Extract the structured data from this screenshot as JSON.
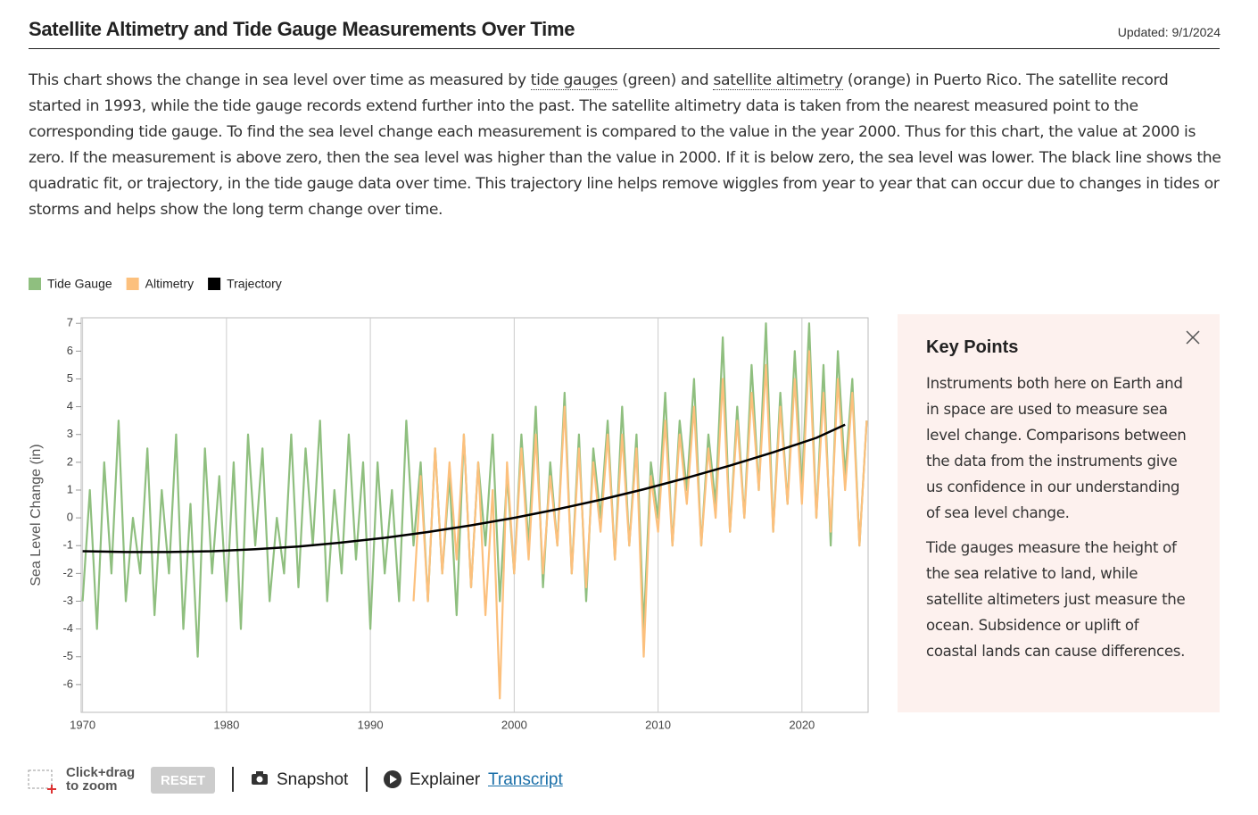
{
  "header": {
    "title": "Satellite Altimetry and Tide Gauge Measurements Over Time",
    "updated": "Updated: 9/1/2024"
  },
  "description": [
    "This chart shows the change in sea level over time as measured by ",
    "tide gauges",
    " (green) and ",
    "satellite altimetry",
    " (orange) in Puerto Rico. The satellite record started in 1993, while the tide gauge records extend further into the past. The satellite altimetry data is taken from the nearest measured point to the corresponding tide gauge. To find the sea level change each measurement is compared to the value in the year 2000. Thus for this chart, the value at 2000 is zero. If the measurement is above zero, then the sea level was higher than the value in 2000. If it is below zero, the sea level was lower. The black line shows the quadratic fit, or trajectory, in the tide gauge data over time. This trajectory line helps remove wiggles from year to year that can occur due to changes in tides or storms and helps show the long term change over time."
  ],
  "chart_data": {
    "type": "line",
    "ylabel": "Sea Level Change (in)",
    "xlim": [
      1969.9,
      2024.6
    ],
    "xticks": [
      1970,
      1980,
      1990,
      2000,
      2010,
      2020
    ],
    "ylim": [
      -7,
      7.2
    ],
    "yticks": [
      -6,
      -5,
      -4,
      -3,
      -2,
      -1,
      0,
      1,
      2,
      3,
      4,
      5,
      6,
      7
    ],
    "grid": "x",
    "legend": "top-left",
    "series": [
      {
        "name": "Tide Gauge",
        "color": "#8fbf7f",
        "x": [
          1970,
          1970.5,
          1971,
          1971.5,
          1972,
          1972.5,
          1973,
          1973.5,
          1974,
          1974.5,
          1975,
          1975.5,
          1976,
          1976.5,
          1977,
          1977.5,
          1978,
          1978.5,
          1979,
          1979.5,
          1980,
          1980.5,
          1981,
          1981.5,
          1982,
          1982.5,
          1983,
          1983.5,
          1984,
          1984.5,
          1985,
          1985.5,
          1986,
          1986.5,
          1987,
          1987.5,
          1988,
          1988.5,
          1989,
          1989.5,
          1990,
          1990.5,
          1991,
          1991.5,
          1992,
          1992.5,
          1993,
          1993.5,
          1994,
          1994.5,
          1995,
          1995.5,
          1996,
          1996.5,
          1997,
          1997.5,
          1998,
          1998.5,
          1999,
          1999.5,
          2000,
          2000.5,
          2001,
          2001.5,
          2002,
          2002.5,
          2003,
          2003.5,
          2004,
          2004.5,
          2005,
          2005.5,
          2006,
          2006.5,
          2007,
          2007.5,
          2008,
          2008.5,
          2009,
          2009.5,
          2010,
          2010.5,
          2011,
          2011.5,
          2012,
          2012.5,
          2013,
          2013.5,
          2014,
          2014.5,
          2015,
          2015.5,
          2016,
          2016.5,
          2017,
          2017.5,
          2018,
          2018.5,
          2019,
          2019.5,
          2020,
          2020.5,
          2021,
          2021.5,
          2022,
          2022.5,
          2023,
          2023.5,
          2024,
          2024.5
        ],
        "values": [
          -3,
          1,
          -4,
          2,
          -2,
          3.5,
          -3,
          0,
          -2,
          2.5,
          -3.5,
          1,
          -2,
          3,
          -4,
          0.5,
          -5,
          2.5,
          -2,
          1.5,
          -3,
          2,
          -4,
          3,
          -1,
          2.5,
          -3,
          0,
          -2,
          3,
          -2.5,
          2.5,
          -1,
          3.5,
          -3,
          1,
          -2,
          3,
          -1.5,
          2,
          -4,
          2,
          -2,
          1,
          -3,
          3.5,
          -1,
          2,
          -3,
          2.5,
          -2,
          1.5,
          -3.5,
          3,
          -2.5,
          2,
          -1,
          3,
          -3,
          1.5,
          -2,
          3,
          -1,
          4,
          -2.5,
          2,
          -1,
          4.5,
          -2,
          3,
          -3,
          2.5,
          0,
          3.5,
          -1.5,
          4,
          -1,
          3,
          -4,
          2,
          0,
          4.5,
          -1,
          3.5,
          1,
          5,
          -1,
          3,
          0.5,
          6.5,
          -0.5,
          4,
          0,
          5.5,
          1,
          7,
          -0.5,
          4.5,
          0.5,
          6,
          1,
          7,
          0,
          5.5,
          -1,
          6,
          1.5,
          5,
          -1,
          3.5
        ]
      },
      {
        "name": "Altimetry",
        "color": "#fcc07d",
        "x": [
          1993,
          1993.5,
          1994,
          1994.5,
          1995,
          1995.5,
          1996,
          1996.5,
          1997,
          1997.5,
          1998,
          1998.5,
          1999,
          1999.5,
          2000,
          2000.5,
          2001,
          2001.5,
          2002,
          2002.5,
          2003,
          2003.5,
          2004,
          2004.5,
          2005,
          2005.5,
          2006,
          2006.5,
          2007,
          2007.5,
          2008,
          2008.5,
          2009,
          2009.5,
          2010,
          2010.5,
          2011,
          2011.5,
          2012,
          2012.5,
          2013,
          2013.5,
          2014,
          2014.5,
          2015,
          2015.5,
          2016,
          2016.5,
          2017,
          2017.5,
          2018,
          2018.5,
          2019,
          2019.5,
          2020,
          2020.5,
          2021,
          2021.5,
          2022,
          2022.5,
          2023,
          2023.5,
          2024,
          2024.5
        ],
        "values": [
          -3,
          1.5,
          -3,
          2.5,
          -2,
          2,
          -1.5,
          3,
          -2.5,
          2,
          -3.5,
          1,
          -6.5,
          2,
          -2,
          2.5,
          -1.5,
          3,
          -2,
          1.5,
          -1,
          4,
          -2,
          2.5,
          -2.5,
          2,
          -0.5,
          3,
          -1.5,
          3,
          -1,
          2.5,
          -5,
          1.5,
          -0.5,
          3.5,
          -1,
          3,
          0.5,
          4,
          -1,
          2.5,
          0,
          5,
          -0.5,
          3.5,
          0,
          4.5,
          1,
          5.5,
          -0.5,
          4,
          0.5,
          5,
          0.5,
          6,
          0,
          4.5,
          -0.5,
          5,
          1,
          4.5,
          -1,
          3.5
        ]
      },
      {
        "name": "Trajectory",
        "color": "#000000",
        "x": [
          1970,
          1973,
          1976,
          1979,
          1982,
          1985,
          1988,
          1991,
          1994,
          1997,
          2000,
          2003,
          2006,
          2009,
          2012,
          2015,
          2018,
          2021,
          2023
        ],
        "values": [
          -1.2,
          -1.23,
          -1.23,
          -1.2,
          -1.13,
          -1.03,
          -0.89,
          -0.72,
          -0.51,
          -0.27,
          0,
          0.31,
          0.65,
          1.03,
          1.44,
          1.88,
          2.36,
          2.88,
          3.35
        ]
      }
    ]
  },
  "key_points": {
    "title": "Key Points",
    "paragraphs": [
      "Instruments both here on Earth and in space are used to measure sea level change. Comparisons between the data from the instruments give us confidence in our understanding of sea level change.",
      "Tide gauges measure the height of the sea relative to land, while satellite altimeters just measure the ocean. Subsidence or uplift of coastal lands can cause differences."
    ]
  },
  "toolbar": {
    "zoom": [
      "Click+drag",
      "to zoom"
    ],
    "reset": "RESET",
    "snapshot": "Snapshot",
    "explainer": "Explainer",
    "transcript": "Transcript"
  }
}
